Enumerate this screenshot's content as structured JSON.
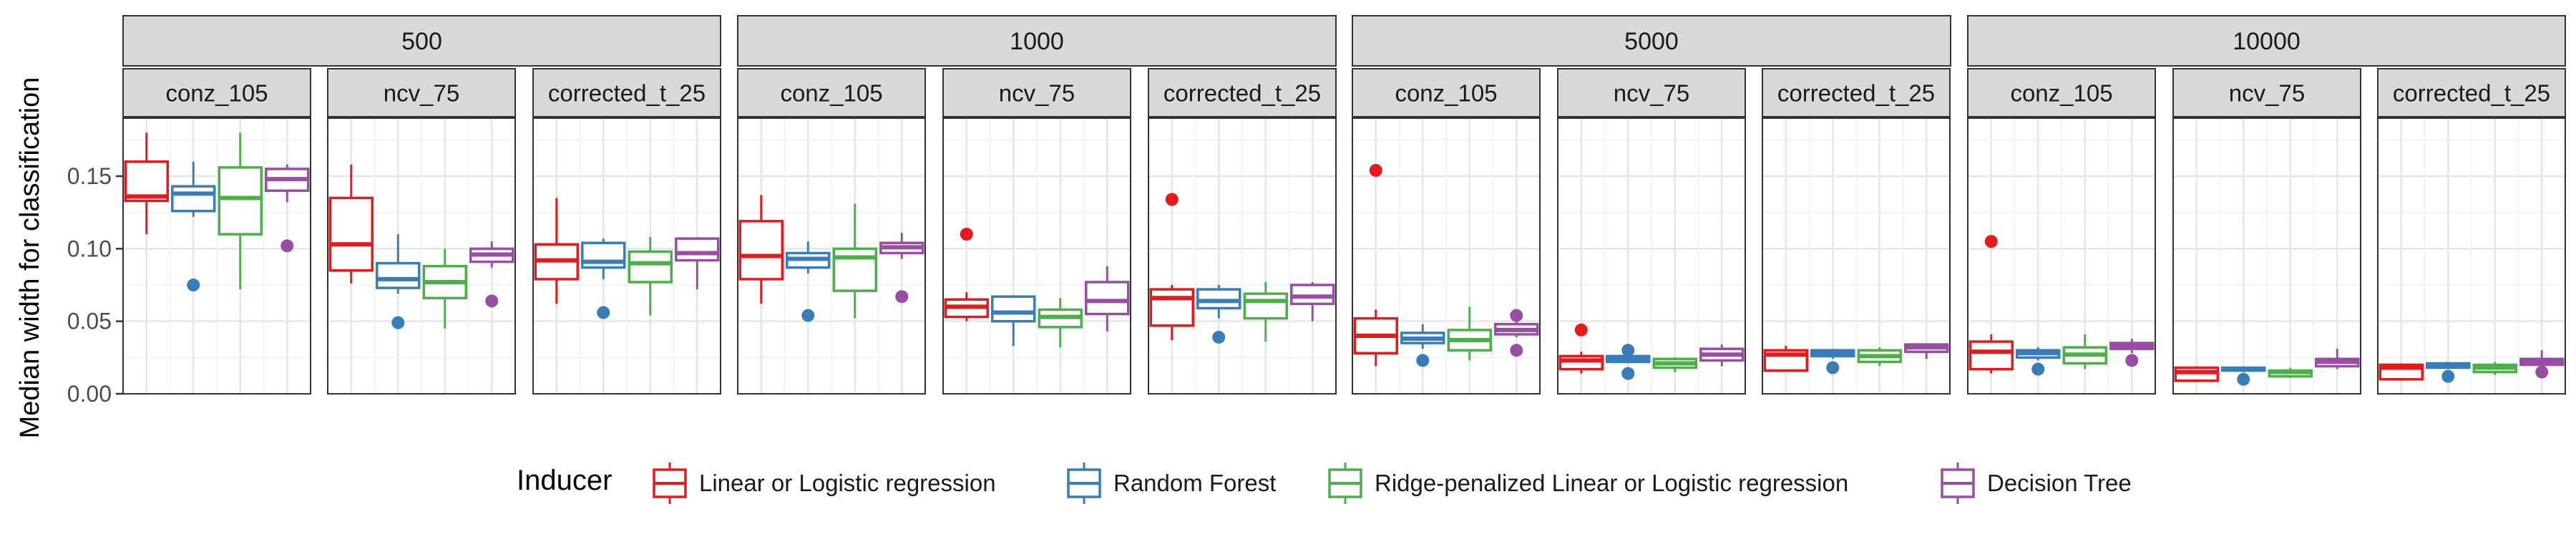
{
  "chart_data": {
    "type": "boxplot",
    "ylabel": "Median width for classification",
    "ylim": [
      0,
      0.19
    ],
    "yticks": [
      0.0,
      0.05,
      0.1,
      0.15
    ],
    "ytick_labels": [
      "0.00",
      "0.05",
      "0.10",
      "0.15"
    ],
    "legend": {
      "title": "Inducer",
      "position": "bottom",
      "entries": [
        {
          "label": "Linear or Logistic regression",
          "color": "#E41A1C"
        },
        {
          "label": "Random Forest",
          "color": "#377EB8"
        },
        {
          "label": "Ridge-penalized Linear or Logistic regression",
          "color": "#4DAF4A"
        },
        {
          "label": "Decision Tree",
          "color": "#984EA3"
        }
      ]
    },
    "grid": true,
    "outer_facets": [
      "500",
      "1000",
      "5000",
      "10000"
    ],
    "inner_facets": [
      "conz_105",
      "ncv_75",
      "corrected_t_25"
    ],
    "panels": [
      {
        "outer": "500",
        "inner": "conz_105",
        "boxes": [
          {
            "min": 0.11,
            "q1": 0.133,
            "median": 0.136,
            "q3": 0.16,
            "max": 0.18,
            "outliers": []
          },
          {
            "min": 0.122,
            "q1": 0.126,
            "median": 0.138,
            "q3": 0.143,
            "max": 0.16,
            "outliers": [
              0.075
            ]
          },
          {
            "min": 0.072,
            "q1": 0.11,
            "median": 0.135,
            "q3": 0.156,
            "max": 0.18,
            "outliers": []
          },
          {
            "min": 0.132,
            "q1": 0.14,
            "median": 0.148,
            "q3": 0.155,
            "max": 0.158,
            "outliers": [
              0.102
            ]
          }
        ]
      },
      {
        "outer": "500",
        "inner": "ncv_75",
        "boxes": [
          {
            "min": 0.076,
            "q1": 0.085,
            "median": 0.103,
            "q3": 0.135,
            "max": 0.158,
            "outliers": []
          },
          {
            "min": 0.069,
            "q1": 0.073,
            "median": 0.079,
            "q3": 0.09,
            "max": 0.11,
            "outliers": [
              0.049
            ]
          },
          {
            "min": 0.045,
            "q1": 0.066,
            "median": 0.077,
            "q3": 0.088,
            "max": 0.1,
            "outliers": []
          },
          {
            "min": 0.087,
            "q1": 0.091,
            "median": 0.096,
            "q3": 0.1,
            "max": 0.105,
            "outliers": [
              0.064
            ]
          }
        ]
      },
      {
        "outer": "500",
        "inner": "corrected_t_25",
        "boxes": [
          {
            "min": 0.062,
            "q1": 0.079,
            "median": 0.092,
            "q3": 0.103,
            "max": 0.135,
            "outliers": []
          },
          {
            "min": 0.079,
            "q1": 0.087,
            "median": 0.091,
            "q3": 0.104,
            "max": 0.107,
            "outliers": [
              0.056
            ]
          },
          {
            "min": 0.054,
            "q1": 0.077,
            "median": 0.09,
            "q3": 0.098,
            "max": 0.108,
            "outliers": []
          },
          {
            "min": 0.072,
            "q1": 0.092,
            "median": 0.097,
            "q3": 0.107,
            "max": 0.108,
            "outliers": []
          }
        ]
      },
      {
        "outer": "1000",
        "inner": "conz_105",
        "boxes": [
          {
            "min": 0.062,
            "q1": 0.079,
            "median": 0.095,
            "q3": 0.119,
            "max": 0.137,
            "outliers": []
          },
          {
            "min": 0.083,
            "q1": 0.087,
            "median": 0.093,
            "q3": 0.097,
            "max": 0.105,
            "outliers": [
              0.054
            ]
          },
          {
            "min": 0.052,
            "q1": 0.071,
            "median": 0.094,
            "q3": 0.1,
            "max": 0.131,
            "outliers": []
          },
          {
            "min": 0.093,
            "q1": 0.097,
            "median": 0.101,
            "q3": 0.104,
            "max": 0.111,
            "outliers": [
              0.067
            ]
          }
        ]
      },
      {
        "outer": "1000",
        "inner": "ncv_75",
        "boxes": [
          {
            "min": 0.05,
            "q1": 0.053,
            "median": 0.06,
            "q3": 0.065,
            "max": 0.07,
            "outliers": [
              0.11
            ]
          },
          {
            "min": 0.033,
            "q1": 0.05,
            "median": 0.056,
            "q3": 0.067,
            "max": 0.068,
            "outliers": []
          },
          {
            "min": 0.032,
            "q1": 0.046,
            "median": 0.053,
            "q3": 0.058,
            "max": 0.066,
            "outliers": []
          },
          {
            "min": 0.043,
            "q1": 0.055,
            "median": 0.064,
            "q3": 0.077,
            "max": 0.088,
            "outliers": []
          }
        ]
      },
      {
        "outer": "1000",
        "inner": "corrected_t_25",
        "boxes": [
          {
            "min": 0.037,
            "q1": 0.047,
            "median": 0.066,
            "q3": 0.072,
            "max": 0.075,
            "outliers": [
              0.134
            ]
          },
          {
            "min": 0.052,
            "q1": 0.059,
            "median": 0.064,
            "q3": 0.072,
            "max": 0.075,
            "outliers": [
              0.039
            ]
          },
          {
            "min": 0.036,
            "q1": 0.052,
            "median": 0.064,
            "q3": 0.069,
            "max": 0.077,
            "outliers": []
          },
          {
            "min": 0.05,
            "q1": 0.062,
            "median": 0.067,
            "q3": 0.075,
            "max": 0.077,
            "outliers": []
          }
        ]
      },
      {
        "outer": "5000",
        "inner": "conz_105",
        "boxes": [
          {
            "min": 0.019,
            "q1": 0.028,
            "median": 0.04,
            "q3": 0.052,
            "max": 0.058,
            "outliers": [
              0.154
            ]
          },
          {
            "min": 0.031,
            "q1": 0.035,
            "median": 0.038,
            "q3": 0.042,
            "max": 0.048,
            "outliers": [
              0.023
            ]
          },
          {
            "min": 0.023,
            "q1": 0.03,
            "median": 0.037,
            "q3": 0.044,
            "max": 0.06,
            "outliers": []
          },
          {
            "min": 0.039,
            "q1": 0.041,
            "median": 0.044,
            "q3": 0.048,
            "max": 0.05,
            "outliers": [
              0.054,
              0.03
            ]
          }
        ]
      },
      {
        "outer": "5000",
        "inner": "ncv_75",
        "boxes": [
          {
            "min": 0.014,
            "q1": 0.017,
            "median": 0.023,
            "q3": 0.026,
            "max": 0.029,
            "outliers": [
              0.044
            ]
          },
          {
            "min": 0.021,
            "q1": 0.022,
            "median": 0.024,
            "q3": 0.026,
            "max": 0.026,
            "outliers": [
              0.03,
              0.014
            ]
          },
          {
            "min": 0.015,
            "q1": 0.018,
            "median": 0.021,
            "q3": 0.024,
            "max": 0.025,
            "outliers": []
          },
          {
            "min": 0.019,
            "q1": 0.023,
            "median": 0.027,
            "q3": 0.031,
            "max": 0.034,
            "outliers": []
          }
        ]
      },
      {
        "outer": "5000",
        "inner": "corrected_t_25",
        "boxes": [
          {
            "min": 0.016,
            "q1": 0.016,
            "median": 0.027,
            "q3": 0.03,
            "max": 0.033,
            "outliers": []
          },
          {
            "min": 0.024,
            "q1": 0.026,
            "median": 0.028,
            "q3": 0.03,
            "max": 0.031,
            "outliers": [
              0.018
            ]
          },
          {
            "min": 0.019,
            "q1": 0.022,
            "median": 0.026,
            "q3": 0.03,
            "max": 0.032,
            "outliers": []
          },
          {
            "min": 0.024,
            "q1": 0.029,
            "median": 0.032,
            "q3": 0.034,
            "max": 0.034,
            "outliers": []
          }
        ]
      },
      {
        "outer": "10000",
        "inner": "conz_105",
        "boxes": [
          {
            "min": 0.014,
            "q1": 0.017,
            "median": 0.029,
            "q3": 0.036,
            "max": 0.041,
            "outliers": [
              0.105
            ]
          },
          {
            "min": 0.023,
            "q1": 0.025,
            "median": 0.028,
            "q3": 0.03,
            "max": 0.032,
            "outliers": [
              0.017
            ]
          },
          {
            "min": 0.017,
            "q1": 0.021,
            "median": 0.027,
            "q3": 0.032,
            "max": 0.041,
            "outliers": []
          },
          {
            "min": 0.028,
            "q1": 0.031,
            "median": 0.033,
            "q3": 0.035,
            "max": 0.038,
            "outliers": [
              0.023
            ]
          }
        ]
      },
      {
        "outer": "10000",
        "inner": "ncv_75",
        "boxes": [
          {
            "min": 0.008,
            "q1": 0.009,
            "median": 0.015,
            "q3": 0.018,
            "max": 0.019,
            "outliers": []
          },
          {
            "min": 0.015,
            "q1": 0.016,
            "median": 0.017,
            "q3": 0.018,
            "max": 0.019,
            "outliers": [
              0.01
            ]
          },
          {
            "min": 0.011,
            "q1": 0.012,
            "median": 0.015,
            "q3": 0.016,
            "max": 0.018,
            "outliers": []
          },
          {
            "min": 0.017,
            "q1": 0.019,
            "median": 0.022,
            "q3": 0.024,
            "max": 0.031,
            "outliers": []
          }
        ]
      },
      {
        "outer": "10000",
        "inner": "corrected_t_25",
        "boxes": [
          {
            "min": 0.009,
            "q1": 0.01,
            "median": 0.018,
            "q3": 0.02,
            "max": 0.021,
            "outliers": []
          },
          {
            "min": 0.017,
            "q1": 0.018,
            "median": 0.02,
            "q3": 0.021,
            "max": 0.022,
            "outliers": [
              0.012
            ]
          },
          {
            "min": 0.013,
            "q1": 0.015,
            "median": 0.018,
            "q3": 0.02,
            "max": 0.022,
            "outliers": []
          },
          {
            "min": 0.018,
            "q1": 0.02,
            "median": 0.022,
            "q3": 0.024,
            "max": 0.03,
            "outliers": [
              0.015
            ]
          }
        ]
      }
    ]
  }
}
